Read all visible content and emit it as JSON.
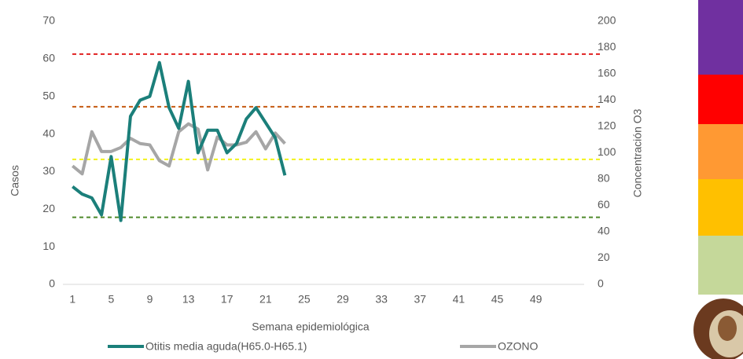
{
  "chart_data": {
    "type": "line",
    "x_label": "Semana epidemiológica",
    "y_label": "Casos",
    "y2_label": "Concentración O3",
    "x": [
      1,
      2,
      3,
      4,
      5,
      6,
      7,
      8,
      9,
      10,
      11,
      12,
      13,
      14,
      15,
      16,
      17,
      18,
      19,
      20,
      21,
      22,
      23
    ],
    "xlim": [
      0,
      54
    ],
    "xticks": [
      1,
      5,
      9,
      13,
      17,
      21,
      25,
      29,
      33,
      37,
      41,
      45,
      49
    ],
    "ylim": [
      0,
      70
    ],
    "yticks": [
      0,
      10,
      20,
      30,
      40,
      50,
      60,
      70
    ],
    "y2lim": [
      0,
      200
    ],
    "y2ticks": [
      0,
      20,
      40,
      60,
      80,
      100,
      120,
      140,
      160,
      180,
      200
    ],
    "series": [
      {
        "name": "Otitis media aguda(H65.0-H65.1)",
        "color": "#1b7f7a",
        "values": [
          26,
          24,
          23,
          18.5,
          34,
          17,
          44.7,
          49,
          50,
          59,
          47,
          41.5,
          54,
          35,
          41,
          41,
          35,
          37.5,
          44,
          47,
          43,
          39,
          29
        ]
      },
      {
        "name": "OZONO",
        "color": "#a6a6a6",
        "axis": "y2",
        "values": [
          90,
          84,
          116,
          101,
          101,
          104,
          111,
          107,
          106,
          94,
          90,
          116,
          122,
          118,
          87,
          112,
          106,
          106,
          108,
          116,
          103,
          115,
          107
        ]
      }
    ],
    "reference_lines": [
      {
        "value": 175,
        "color": "#e02020",
        "axis": "y2"
      },
      {
        "value": 135,
        "color": "#c55a11",
        "axis": "y2"
      },
      {
        "value": 95,
        "color": "#f2f21a",
        "axis": "y2"
      },
      {
        "value": 51,
        "color": "#4e8a2a",
        "axis": "y2"
      }
    ]
  }
}
